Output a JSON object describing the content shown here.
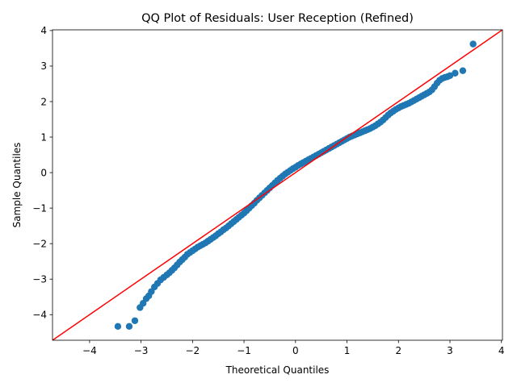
{
  "chart_data": {
    "type": "scatter",
    "title": "QQ Plot of Residuals: User Reception (Refined)",
    "xlabel": "Theoretical Quantiles",
    "ylabel": "Sample Quantiles",
    "xlim": [
      -4.72,
      4.02
    ],
    "ylim": [
      -4.72,
      4.02
    ],
    "xticks": [
      -4,
      -3,
      -2,
      -1,
      0,
      1,
      2,
      3,
      4
    ],
    "yticks": [
      -4,
      -3,
      -2,
      -1,
      0,
      1,
      2,
      3,
      4
    ],
    "grid": false,
    "colors": {
      "points": "#1f77b4",
      "reference_line": "#ff0000"
    },
    "reference_line": {
      "slope": 1,
      "intercept": 0
    },
    "series": [
      {
        "points": [
          [
            -3.45,
            -4.33
          ],
          [
            -3.23,
            -4.33
          ],
          [
            -3.12,
            -4.17
          ],
          [
            -3.02,
            -3.8
          ],
          [
            -2.96,
            -3.68
          ],
          [
            -2.9,
            -3.55
          ],
          [
            -2.85,
            -3.47
          ],
          [
            -2.8,
            -3.35
          ],
          [
            -2.74,
            -3.22
          ],
          [
            -2.68,
            -3.12
          ],
          [
            -2.62,
            -3.02
          ],
          [
            -2.56,
            -2.95
          ],
          [
            -2.5,
            -2.88
          ],
          [
            -2.45,
            -2.82
          ],
          [
            -2.4,
            -2.75
          ],
          [
            -2.35,
            -2.68
          ],
          [
            -2.3,
            -2.6
          ],
          [
            -2.25,
            -2.52
          ],
          [
            -2.2,
            -2.45
          ],
          [
            -2.15,
            -2.38
          ],
          [
            -2.1,
            -2.3
          ],
          [
            -2.05,
            -2.25
          ],
          [
            -2.0,
            -2.2
          ],
          [
            -1.95,
            -2.15
          ],
          [
            -1.9,
            -2.1
          ],
          [
            -1.85,
            -2.06
          ],
          [
            -1.8,
            -2.02
          ],
          [
            -1.75,
            -1.98
          ],
          [
            -1.7,
            -1.93
          ],
          [
            -1.65,
            -1.88
          ],
          [
            -1.6,
            -1.83
          ],
          [
            -1.55,
            -1.78
          ],
          [
            -1.5,
            -1.72
          ],
          [
            -1.45,
            -1.67
          ],
          [
            -1.4,
            -1.61
          ],
          [
            -1.35,
            -1.56
          ],
          [
            -1.3,
            -1.5
          ],
          [
            -1.25,
            -1.44
          ],
          [
            -1.2,
            -1.38
          ],
          [
            -1.15,
            -1.32
          ],
          [
            -1.1,
            -1.26
          ],
          [
            -1.05,
            -1.2
          ],
          [
            -1.0,
            -1.14
          ],
          [
            -0.95,
            -1.07
          ],
          [
            -0.9,
            -1.0
          ],
          [
            -0.85,
            -0.93
          ],
          [
            -0.8,
            -0.86
          ],
          [
            -0.75,
            -0.78
          ],
          [
            -0.7,
            -0.71
          ],
          [
            -0.65,
            -0.64
          ],
          [
            -0.6,
            -0.57
          ],
          [
            -0.55,
            -0.5
          ],
          [
            -0.5,
            -0.43
          ],
          [
            -0.45,
            -0.36
          ],
          [
            -0.4,
            -0.29
          ],
          [
            -0.35,
            -0.22
          ],
          [
            -0.3,
            -0.16
          ],
          [
            -0.25,
            -0.1
          ],
          [
            -0.2,
            -0.04
          ],
          [
            -0.15,
            0.01
          ],
          [
            -0.1,
            0.06
          ],
          [
            -0.05,
            0.11
          ],
          [
            0.0,
            0.15
          ],
          [
            0.05,
            0.2
          ],
          [
            0.1,
            0.24
          ],
          [
            0.15,
            0.28
          ],
          [
            0.2,
            0.32
          ],
          [
            0.25,
            0.36
          ],
          [
            0.3,
            0.4
          ],
          [
            0.35,
            0.44
          ],
          [
            0.4,
            0.48
          ],
          [
            0.45,
            0.52
          ],
          [
            0.5,
            0.56
          ],
          [
            0.55,
            0.6
          ],
          [
            0.6,
            0.64
          ],
          [
            0.65,
            0.68
          ],
          [
            0.7,
            0.72
          ],
          [
            0.75,
            0.76
          ],
          [
            0.8,
            0.8
          ],
          [
            0.85,
            0.84
          ],
          [
            0.9,
            0.88
          ],
          [
            0.95,
            0.92
          ],
          [
            1.0,
            0.96
          ],
          [
            1.05,
            1.0
          ],
          [
            1.1,
            1.03
          ],
          [
            1.15,
            1.06
          ],
          [
            1.2,
            1.09
          ],
          [
            1.25,
            1.12
          ],
          [
            1.3,
            1.15
          ],
          [
            1.35,
            1.18
          ],
          [
            1.4,
            1.21
          ],
          [
            1.45,
            1.24
          ],
          [
            1.5,
            1.28
          ],
          [
            1.55,
            1.32
          ],
          [
            1.6,
            1.37
          ],
          [
            1.65,
            1.42
          ],
          [
            1.7,
            1.48
          ],
          [
            1.75,
            1.55
          ],
          [
            1.8,
            1.62
          ],
          [
            1.85,
            1.68
          ],
          [
            1.9,
            1.73
          ],
          [
            1.95,
            1.78
          ],
          [
            2.0,
            1.82
          ],
          [
            2.05,
            1.86
          ],
          [
            2.1,
            1.89
          ],
          [
            2.15,
            1.92
          ],
          [
            2.2,
            1.95
          ],
          [
            2.25,
            1.99
          ],
          [
            2.3,
            2.03
          ],
          [
            2.35,
            2.07
          ],
          [
            2.4,
            2.11
          ],
          [
            2.45,
            2.15
          ],
          [
            2.5,
            2.19
          ],
          [
            2.55,
            2.23
          ],
          [
            2.6,
            2.27
          ],
          [
            2.65,
            2.33
          ],
          [
            2.7,
            2.42
          ],
          [
            2.75,
            2.52
          ],
          [
            2.8,
            2.6
          ],
          [
            2.85,
            2.65
          ],
          [
            2.9,
            2.68
          ],
          [
            2.95,
            2.7
          ],
          [
            3.0,
            2.73
          ],
          [
            3.1,
            2.8
          ],
          [
            3.25,
            2.87
          ],
          [
            3.45,
            3.62
          ]
        ]
      }
    ]
  }
}
